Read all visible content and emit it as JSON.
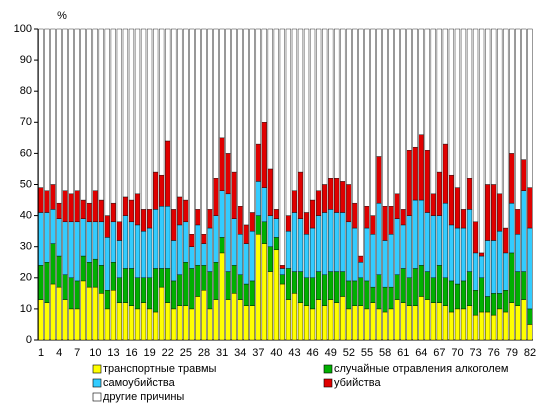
{
  "chart_data": {
    "type": "stacked_bar",
    "y_unit_label": "%",
    "categories": [
      "1",
      null,
      null,
      "4",
      null,
      null,
      "7",
      null,
      null,
      "10",
      null,
      null,
      "13",
      null,
      null,
      "16",
      null,
      null,
      "19",
      null,
      null,
      "22",
      null,
      null,
      "25",
      null,
      null,
      "28",
      null,
      null,
      "31",
      null,
      null,
      "34",
      null,
      null,
      "37",
      null,
      null,
      "40",
      null,
      null,
      "43",
      null,
      null,
      "46",
      null,
      null,
      "49",
      null,
      null,
      "52",
      null,
      null,
      "55",
      null,
      null,
      "58",
      null,
      null,
      "61",
      null,
      null,
      "64",
      null,
      null,
      "67",
      null,
      null,
      "70",
      null,
      null,
      "73",
      null,
      null,
      "76",
      null,
      null,
      "79",
      null,
      null,
      "82"
    ],
    "series": [
      {
        "name": "транспортные травмы",
        "color": "#ffff00",
        "values": [
          13,
          12,
          18,
          17,
          13,
          10,
          10,
          19,
          17,
          17,
          15,
          10,
          16,
          12,
          12,
          11,
          10,
          12,
          10,
          9,
          17,
          12,
          10,
          11,
          11,
          10,
          14,
          16,
          10,
          13,
          28,
          13,
          15,
          13,
          11,
          11,
          34,
          31,
          22,
          29,
          18,
          13,
          15,
          12,
          11,
          10,
          13,
          11,
          13,
          12,
          14,
          10,
          11,
          11,
          10,
          12,
          10,
          9,
          10,
          13,
          12,
          11,
          11,
          14,
          13,
          12,
          12,
          11,
          9,
          10,
          10,
          11,
          8,
          9,
          9,
          8,
          10,
          9,
          12,
          11,
          13,
          5
        ]
      },
      {
        "name": "случайные отравления алкоголем",
        "color": "#00b000",
        "values": [
          11,
          13,
          13,
          10,
          8,
          10,
          9,
          8,
          8,
          9,
          9,
          6,
          9,
          8,
          11,
          12,
          10,
          8,
          10,
          14,
          6,
          11,
          9,
          10,
          14,
          13,
          10,
          8,
          12,
          12,
          5,
          9,
          9,
          8,
          7,
          8,
          6,
          7,
          8,
          4,
          3,
          10,
          7,
          10,
          9,
          10,
          9,
          10,
          9,
          10,
          8,
          9,
          8,
          9,
          9,
          5,
          11,
          8,
          7,
          8,
          11,
          9,
          12,
          10,
          9,
          8,
          12,
          9,
          10,
          8,
          9,
          11,
          8,
          11,
          5,
          7,
          5,
          7,
          16,
          11,
          9,
          5
        ]
      },
      {
        "name": "самоубийства",
        "color": "#33ccff",
        "values": [
          17,
          16,
          11,
          12,
          17,
          18,
          19,
          12,
          13,
          12,
          14,
          17,
          13,
          12,
          17,
          15,
          17,
          15,
          16,
          19,
          20,
          20,
          13,
          16,
          13,
          7,
          13,
          7,
          14,
          15,
          15,
          25,
          15,
          13,
          13,
          16,
          11,
          11,
          10,
          6,
          2,
          12,
          19,
          17,
          14,
          16,
          18,
          20,
          20,
          19,
          19,
          19,
          17,
          5,
          17,
          17,
          23,
          15,
          17,
          18,
          14,
          20,
          22,
          21,
          19,
          20,
          16,
          24,
          18,
          18,
          17,
          20,
          12,
          7,
          18,
          17,
          20,
          12,
          16,
          12,
          26,
          26
        ]
      },
      {
        "name": "убийства",
        "color": "#e00000",
        "values": [
          8,
          7,
          8,
          5,
          10,
          9,
          10,
          6,
          6,
          10,
          7,
          7,
          6,
          6,
          6,
          7,
          10,
          7,
          6,
          12,
          10,
          21,
          10,
          9,
          7,
          4,
          5,
          3,
          6,
          12,
          17,
          13,
          15,
          9,
          6,
          6,
          12,
          21,
          15,
          3,
          1,
          5,
          7,
          15,
          7,
          9,
          8,
          9,
          10,
          11,
          10,
          12,
          8,
          2,
          7,
          6,
          15,
          11,
          9,
          8,
          5,
          21,
          17,
          21,
          20,
          7,
          14,
          19,
          16,
          13,
          6,
          10,
          10,
          1,
          18,
          18,
          12,
          8,
          16,
          8,
          10,
          13
        ]
      },
      {
        "name": "другие причины",
        "color": "#ffffff",
        "values": [
          51,
          52,
          50,
          56,
          52,
          53,
          52,
          55,
          56,
          52,
          55,
          60,
          56,
          62,
          54,
          55,
          53,
          58,
          58,
          46,
          47,
          36,
          58,
          54,
          55,
          66,
          58,
          66,
          58,
          48,
          35,
          40,
          46,
          57,
          63,
          59,
          37,
          30,
          45,
          58,
          76,
          60,
          52,
          46,
          59,
          55,
          52,
          50,
          48,
          48,
          49,
          50,
          56,
          73,
          57,
          60,
          41,
          57,
          57,
          53,
          58,
          39,
          38,
          34,
          39,
          53,
          46,
          37,
          47,
          51,
          58,
          48,
          62,
          72,
          50,
          50,
          53,
          64,
          40,
          58,
          42,
          51
        ]
      }
    ],
    "ylim": [
      0,
      100
    ],
    "yticks": [
      0,
      10,
      20,
      30,
      40,
      50,
      60,
      70,
      80,
      90,
      100
    ]
  }
}
